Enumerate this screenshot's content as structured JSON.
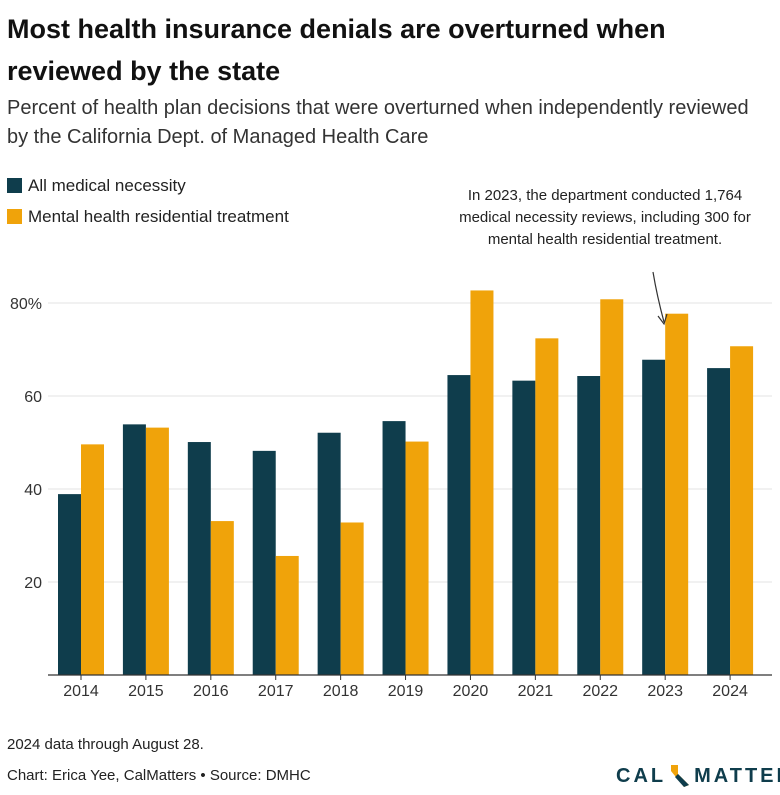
{
  "title": "Most health insurance denials are overturned when reviewed by the state",
  "subtitle": "Percent of health plan decisions that were overturned when independently reviewed by the California Dept. of Managed Health Care",
  "annotation": "In 2023, the department conducted 1,764 medical necessity reviews, including 300 for mental health residential treatment.",
  "footer": {
    "note": "2024 data through August 28.",
    "credit": "Chart: Erica Yee, CalMatters • Source: DMHC"
  },
  "logo": {
    "left": "CAL",
    "right": "MATTERS",
    "icon": "california-state-icon"
  },
  "colors": {
    "series1": "#0f3d4c",
    "series2": "#f0a30a",
    "grid": "#e3e3e3",
    "axis": "#333333"
  },
  "chart_data": {
    "type": "bar",
    "title": "Most health insurance denials are overturned when reviewed by the state",
    "categories": [
      "2014",
      "2015",
      "2016",
      "2017",
      "2018",
      "2019",
      "2020",
      "2021",
      "2022",
      "2023",
      "2024"
    ],
    "series": [
      {
        "name": "All medical necessity",
        "values": [
          38.9,
          53.9,
          50.1,
          48.2,
          52.1,
          54.6,
          64.5,
          63.3,
          64.3,
          67.8,
          66.0
        ]
      },
      {
        "name": "Mental health residential treatment",
        "values": [
          49.6,
          53.2,
          33.1,
          25.6,
          32.8,
          50.2,
          82.7,
          72.4,
          80.8,
          77.7,
          70.7
        ]
      }
    ],
    "yticks": [
      20,
      40,
      60,
      80
    ],
    "ytick_labels": [
      "20",
      "40",
      "60",
      "80%"
    ],
    "ylim": [
      0,
      90
    ],
    "xlabel": "",
    "ylabel": "",
    "grid": true,
    "legend": "top-left"
  }
}
